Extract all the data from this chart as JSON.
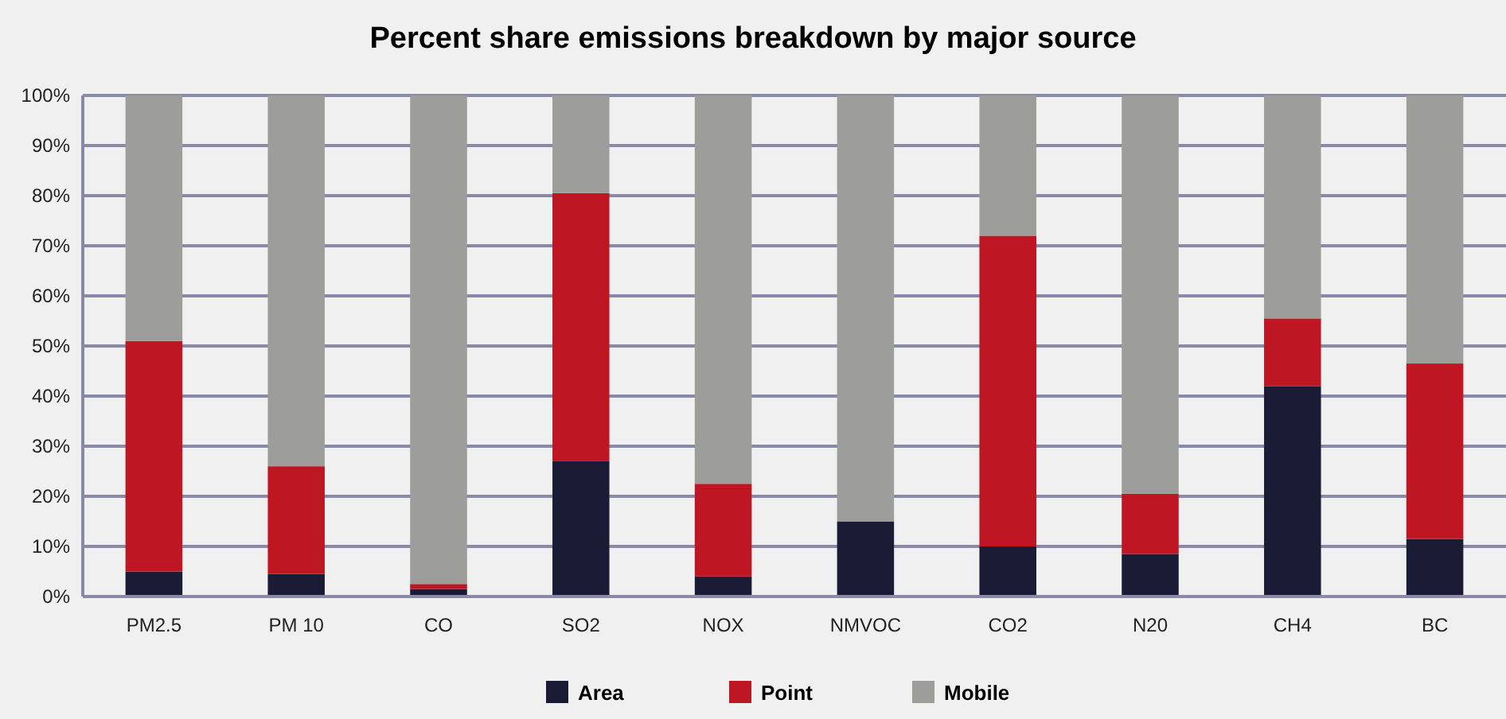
{
  "chart_data": {
    "type": "bar",
    "title": "Percent share emissions breakdown by major source",
    "stacked": true,
    "categories": [
      "PM2.5",
      "PM 10",
      "CO",
      "SO2",
      "NOX",
      "NMVOC",
      "CO2",
      "N20",
      "CH4",
      "BC"
    ],
    "series": [
      {
        "name": "Area",
        "color": "#1b1b36",
        "values": [
          5,
          4.5,
          1.5,
          27,
          4,
          15,
          10,
          8.5,
          42,
          11.5
        ]
      },
      {
        "name": "Point",
        "color": "#be1622",
        "values": [
          46,
          21.5,
          1,
          53.5,
          18.5,
          0,
          62,
          12,
          13.5,
          35
        ]
      },
      {
        "name": "Mobile",
        "color": "#9d9d9c",
        "values": [
          49,
          74,
          97.5,
          19.5,
          77.5,
          85,
          28,
          79.5,
          44.5,
          53.5
        ]
      }
    ],
    "ylim": [
      0,
      100
    ],
    "yticks": [
      {
        "value": 0,
        "label": "0%"
      },
      {
        "value": 10,
        "label": "10%"
      },
      {
        "value": 20,
        "label": "20%"
      },
      {
        "value": 30,
        "label": "30%"
      },
      {
        "value": 40,
        "label": "40%"
      },
      {
        "value": 50,
        "label": "50%"
      },
      {
        "value": 60,
        "label": "60%"
      },
      {
        "value": 70,
        "label": "70%"
      },
      {
        "value": 80,
        "label": "80%"
      },
      {
        "value": 90,
        "label": "90%"
      },
      {
        "value": 100,
        "label": "100%"
      }
    ],
    "grid": "y",
    "legend": "bottom"
  }
}
